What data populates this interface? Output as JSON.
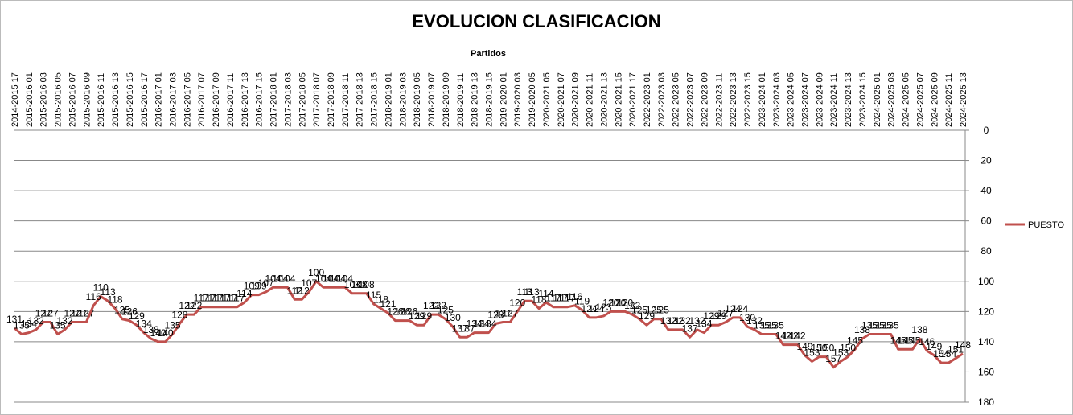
{
  "chart_data": {
    "type": "line",
    "title": "EVOLUCION CLASIFICACION",
    "x_label": "Partidos",
    "categories": [
      "2014-2015 17",
      null,
      "2015-2016 01",
      null,
      "2015-2016 03",
      null,
      "2015-2016 05",
      null,
      "2015-2016 07",
      null,
      "2015-2016 09",
      null,
      "2015-2016 11",
      null,
      "2015-2016 13",
      null,
      "2015-2016 15",
      null,
      "2015-2016 17",
      null,
      "2016-2017 01",
      null,
      "2016-2017 03",
      null,
      "2016-2017 05",
      null,
      "2016-2017 07",
      null,
      "2016-2017 09",
      null,
      "2016-2017 11",
      null,
      "2016-2017 13",
      null,
      "2016-2017 15",
      null,
      "2017-2018 01",
      null,
      "2017-2018 03",
      null,
      "2017-2018 05",
      null,
      "2017-2018 07",
      null,
      "2017-2018 09",
      null,
      "2017-2018 11",
      null,
      "2017-2018 13",
      null,
      "2017-2018 15",
      null,
      "2018-2019 01",
      null,
      "2018-2019 03",
      null,
      "2018-2019 05",
      null,
      "2018-2019 07",
      null,
      "2018-2019 09",
      null,
      "2018-2019 11",
      null,
      "2018-2019 13",
      null,
      "2018-2019 15",
      null,
      "2019-2020 01",
      null,
      "2019-2020 03",
      null,
      "2019-2020 05",
      null,
      "2020-2021 05",
      null,
      "2020-2021 07",
      null,
      "2020-2021 09",
      null,
      "2020-2021 11",
      null,
      "2020-2021 13",
      null,
      "2020-2021 15",
      null,
      "2020-2021 17",
      null,
      "2022-2023 01",
      null,
      "2022-2023 03",
      null,
      "2022-2023 05",
      null,
      "2022-2023 07",
      null,
      "2022-2023 09",
      null,
      "2022-2023 11",
      null,
      "2022-2023 13",
      null,
      "2022-2023 15",
      null,
      "2023-2024 01",
      null,
      "2023-2024 03",
      null,
      "2023-2024 05",
      null,
      "2023-2024 07",
      null,
      "2023-2024 09",
      null,
      "2023-2024 11",
      null,
      "2023-2024 13",
      null,
      "2023-2024 15",
      null,
      "2024-2025 01",
      null,
      "2024-2025 03",
      null,
      "2024-2025 05",
      null,
      "2024-2025 07",
      null,
      "2024-2025 09",
      null,
      "2024-2025 11",
      null,
      "2024-2025 13"
    ],
    "series": [
      {
        "name": "PUESTO",
        "color": "#c0504d",
        "values": [
          131,
          135,
          134,
          132,
          127,
          127,
          135,
          132,
          127,
          127,
          127,
          116,
          110,
          113,
          118,
          125,
          126,
          129,
          134,
          138,
          140,
          140,
          135,
          128,
          122,
          122,
          117,
          117,
          117,
          117,
          117,
          117,
          114,
          109,
          109,
          107,
          104,
          104,
          104,
          112,
          112,
          107,
          100,
          104,
          104,
          104,
          104,
          108,
          108,
          108,
          115,
          118,
          121,
          126,
          126,
          126,
          129,
          129,
          122,
          122,
          125,
          130,
          137,
          137,
          134,
          134,
          134,
          128,
          127,
          127,
          120,
          113,
          113,
          118,
          114,
          117,
          117,
          117,
          116,
          119,
          124,
          124,
          123,
          120,
          120,
          120,
          122,
          125,
          129,
          125,
          125,
          132,
          132,
          132,
          137,
          132,
          134,
          129,
          129,
          127,
          124,
          124,
          130,
          132,
          135,
          135,
          135,
          142,
          142,
          142,
          149,
          153,
          150,
          150,
          157,
          153,
          150,
          145,
          138,
          135,
          135,
          135,
          135,
          145,
          145,
          145,
          138,
          146,
          149,
          154,
          154,
          151,
          148
        ]
      }
    ],
    "ylim": [
      0,
      180
    ],
    "yticks": [
      0,
      20,
      40,
      60,
      80,
      100,
      120,
      140,
      160,
      180
    ],
    "y_reversed": true,
    "grid": true,
    "legend": "right"
  }
}
